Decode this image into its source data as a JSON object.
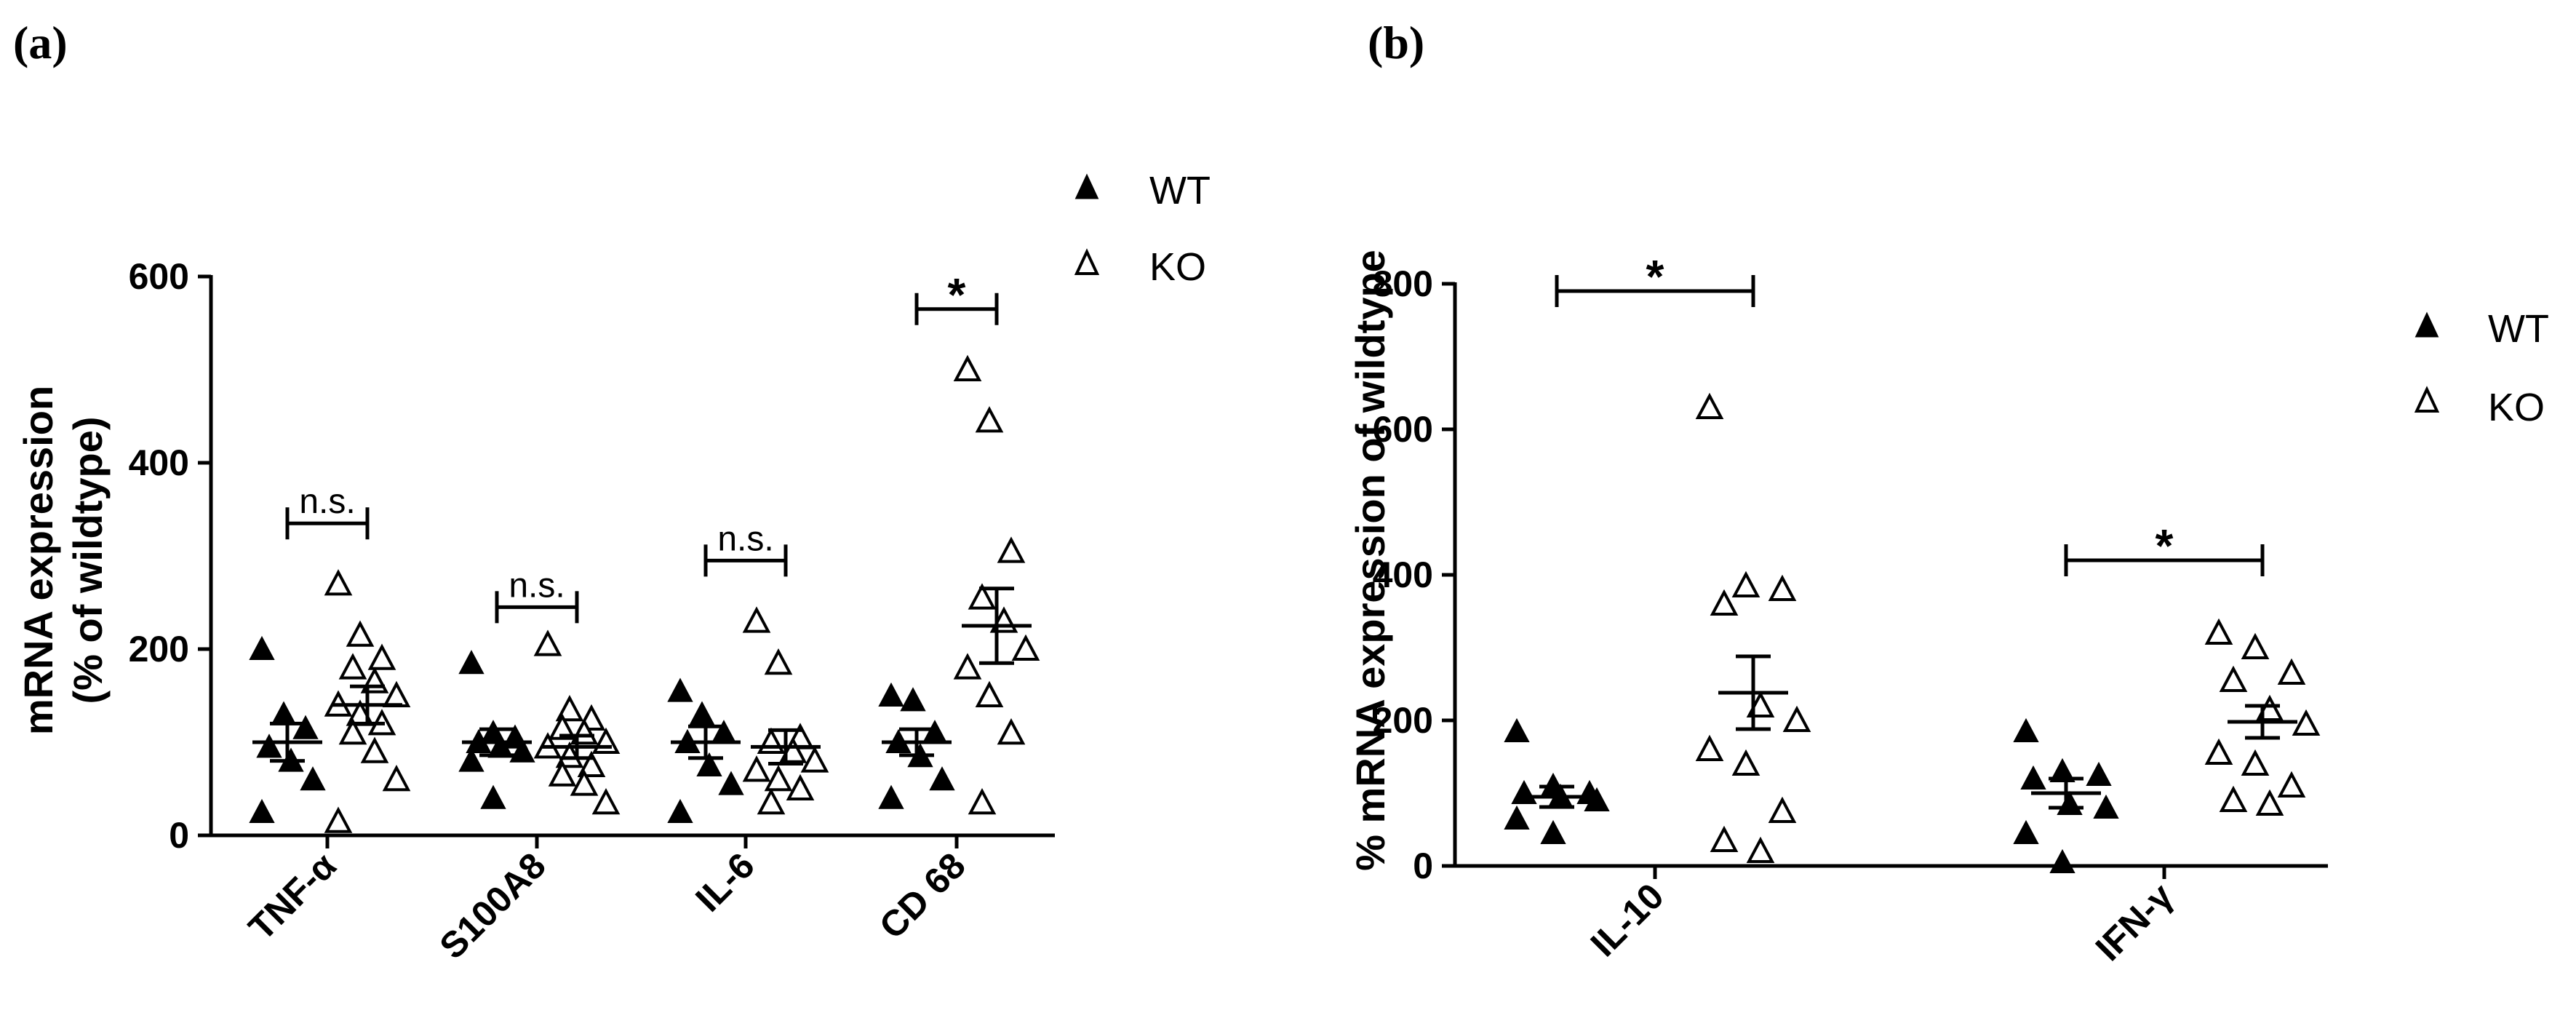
{
  "panels": [
    {
      "label": "(a)",
      "legend": [
        "WT",
        "KO"
      ]
    },
    {
      "label": "(b)",
      "legend": [
        "WT",
        "KO"
      ]
    }
  ],
  "chart_data": [
    {
      "type": "scatter",
      "title": "",
      "ylabel": [
        "mRNA expression",
        "(% of wildtype)"
      ],
      "xlabel": "",
      "ylim": [
        0,
        600
      ],
      "yticks": [
        0,
        200,
        400,
        600
      ],
      "categories": [
        "TNF-α",
        "S100A8",
        "IL-6",
        "CD 68"
      ],
      "series": [
        {
          "name": "WT",
          "marker": "filled-triangle",
          "points": [
            [
              200,
              130,
              115,
              95,
              80,
              60,
              25
            ],
            [
              185,
              110,
              105,
              100,
              95,
              90,
              80,
              40
            ],
            [
              155,
              130,
              110,
              100,
              75,
              55,
              25
            ],
            [
              150,
              145,
              110,
              100,
              85,
              60,
              40
            ]
          ],
          "mean": [
            100,
            100,
            100,
            100
          ],
          "sem": [
            20,
            14,
            17,
            14
          ]
        },
        {
          "name": "KO",
          "marker": "open-triangle",
          "points": [
            [
              270,
              215,
              190,
              180,
              165,
              150,
              140,
              130,
              120,
              110,
              90,
              60,
              15
            ],
            [
              205,
              135,
              125,
              115,
              110,
              100,
              95,
              85,
              75,
              65,
              55,
              35
            ],
            [
              230,
              185,
              105,
              100,
              90,
              80,
              70,
              60,
              50,
              35
            ],
            [
              500,
              445,
              305,
              255,
              230,
              200,
              180,
              150,
              110,
              35
            ]
          ],
          "mean": [
            140,
            95,
            95,
            225
          ],
          "sem": [
            20,
            12,
            18,
            40
          ]
        }
      ],
      "significance": [
        "n.s.",
        "n.s.",
        "n.s.",
        "*"
      ]
    },
    {
      "type": "scatter",
      "title": "",
      "ylabel": "% mRNA expression of wildtype",
      "xlabel": "",
      "ylim": [
        0,
        800
      ],
      "yticks": [
        0,
        200,
        400,
        600,
        800
      ],
      "categories": [
        "IL-10",
        "IFN-γ"
      ],
      "series": [
        {
          "name": "WT",
          "marker": "filled-triangle",
          "points": [
            [
              185,
              110,
              100,
              100,
              95,
              90,
              65,
              45
            ],
            [
              185,
              130,
              125,
              120,
              85,
              80,
              45,
              5
            ]
          ],
          "mean": [
            95,
            100
          ],
          "sem": [
            14,
            20
          ]
        },
        {
          "name": "KO",
          "marker": "open-triangle",
          "points": [
            [
              630,
              385,
              380,
              360,
              220,
              200,
              160,
              140,
              75,
              35,
              20
            ],
            [
              320,
              300,
              265,
              255,
              215,
              195,
              155,
              140,
              110,
              90,
              85
            ]
          ],
          "mean": [
            238,
            198
          ],
          "sem": [
            50,
            22
          ]
        }
      ],
      "significance": [
        "*",
        "*"
      ]
    }
  ]
}
